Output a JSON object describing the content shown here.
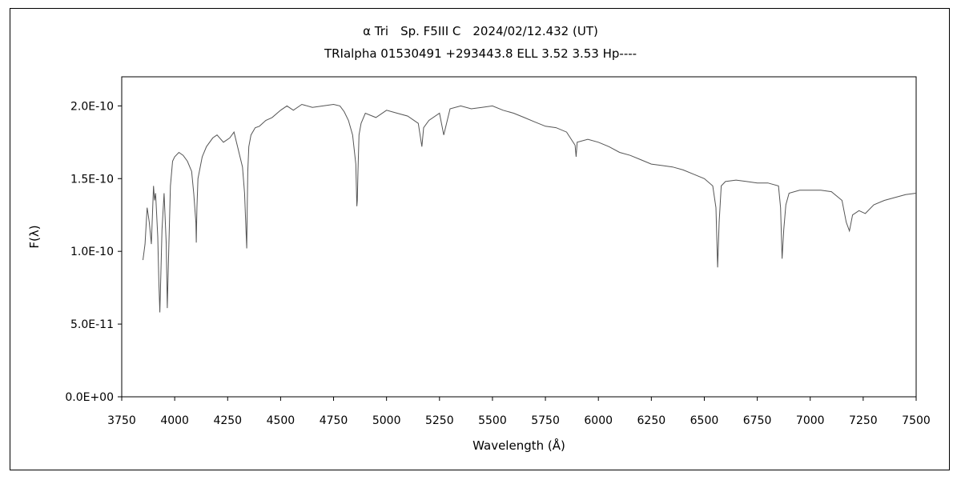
{
  "chart_data": {
    "type": "line",
    "title": "α Tri　Sp. F5III C　2024/02/12.432 (UT)",
    "subtitle": "TRIalpha 01530491 +293443.8 ELL 3.52 3.53 Hp----",
    "xlabel": "Wavelength (Å)",
    "ylabel": "F(λ)",
    "xlim": [
      3750,
      7500
    ],
    "ylim": [
      0,
      2.2e-10
    ],
    "grid": false,
    "x_ticks": [
      3750,
      4000,
      4250,
      4500,
      4750,
      5000,
      5250,
      5500,
      5750,
      6000,
      6250,
      6500,
      6750,
      7000,
      7250,
      7500
    ],
    "x_tick_labels": [
      "3750",
      "4000",
      "4250",
      "4500",
      "4750",
      "5000",
      "5250",
      "5500",
      "5750",
      "6000",
      "6250",
      "6500",
      "6750",
      "7000",
      "7250",
      "7500"
    ],
    "y_ticks": [
      0,
      5e-11,
      1e-10,
      1.5e-10,
      2e-10
    ],
    "y_tick_labels": [
      "0.0E+00",
      "5.0E-11",
      "1.0E-10",
      "1.5E-10",
      "2.0E-10"
    ],
    "series": [
      {
        "color": "#555555",
        "x": [
          3850,
          3860,
          3870,
          3875,
          3880,
          3890,
          3900,
          3905,
          3910,
          3920,
          3925,
          3930,
          3935,
          3940,
          3950,
          3960,
          3965,
          3970,
          3980,
          3990,
          4000,
          4020,
          4040,
          4060,
          4080,
          4090,
          4100,
          4102,
          4105,
          4110,
          4130,
          4150,
          4180,
          4200,
          4230,
          4260,
          4280,
          4300,
          4320,
          4330,
          4335,
          4340,
          4342,
          4345,
          4350,
          4360,
          4380,
          4400,
          4430,
          4460,
          4500,
          4530,
          4560,
          4600,
          4650,
          4700,
          4750,
          4780,
          4800,
          4820,
          4840,
          4855,
          4860,
          4862,
          4865,
          4870,
          4880,
          4900,
          4950,
          5000,
          5050,
          5100,
          5150,
          5167,
          5175,
          5200,
          5250,
          5270,
          5300,
          5350,
          5400,
          5450,
          5500,
          5550,
          5600,
          5650,
          5700,
          5750,
          5800,
          5850,
          5890,
          5895,
          5900,
          5950,
          6000,
          6050,
          6100,
          6150,
          6200,
          6250,
          6300,
          6350,
          6400,
          6450,
          6500,
          6540,
          6555,
          6563,
          6570,
          6580,
          6600,
          6650,
          6700,
          6750,
          6800,
          6850,
          6860,
          6867,
          6875,
          6885,
          6900,
          6950,
          7000,
          7050,
          7100,
          7150,
          7170,
          7185,
          7200,
          7230,
          7260,
          7300,
          7350,
          7400,
          7450,
          7500
        ],
        "y": [
          9.4e-11,
          1.05e-10,
          1.3e-10,
          1.25e-10,
          1.2e-10,
          1.05e-10,
          1.45e-10,
          1.35e-10,
          1.4e-10,
          1.1e-10,
          8e-11,
          5.8e-11,
          8.5e-11,
          1.15e-10,
          1.4e-10,
          1.05e-10,
          6.1e-11,
          9e-11,
          1.45e-10,
          1.62e-10,
          1.65e-10,
          1.68e-10,
          1.66e-10,
          1.62e-10,
          1.55e-10,
          1.4e-10,
          1.2e-10,
          1.06e-10,
          1.3e-10,
          1.5e-10,
          1.65e-10,
          1.72e-10,
          1.78e-10,
          1.8e-10,
          1.75e-10,
          1.78e-10,
          1.82e-10,
          1.7e-10,
          1.58e-10,
          1.4e-10,
          1.2e-10,
          1.02e-10,
          1.25e-10,
          1.55e-10,
          1.72e-10,
          1.8e-10,
          1.85e-10,
          1.86e-10,
          1.9e-10,
          1.92e-10,
          1.97e-10,
          2e-10,
          1.97e-10,
          2.01e-10,
          1.99e-10,
          2e-10,
          2.01e-10,
          2e-10,
          1.96e-10,
          1.9e-10,
          1.8e-10,
          1.6e-10,
          1.31e-10,
          1.35e-10,
          1.55e-10,
          1.8e-10,
          1.88e-10,
          1.95e-10,
          1.92e-10,
          1.97e-10,
          1.95e-10,
          1.93e-10,
          1.88e-10,
          1.72e-10,
          1.85e-10,
          1.9e-10,
          1.95e-10,
          1.8e-10,
          1.98e-10,
          2e-10,
          1.98e-10,
          1.99e-10,
          2e-10,
          1.97e-10,
          1.95e-10,
          1.92e-10,
          1.89e-10,
          1.86e-10,
          1.85e-10,
          1.82e-10,
          1.73e-10,
          1.65e-10,
          1.75e-10,
          1.77e-10,
          1.75e-10,
          1.72e-10,
          1.68e-10,
          1.66e-10,
          1.63e-10,
          1.6e-10,
          1.59e-10,
          1.58e-10,
          1.56e-10,
          1.53e-10,
          1.5e-10,
          1.45e-10,
          1.3e-10,
          8.9e-11,
          1.2e-10,
          1.45e-10,
          1.48e-10,
          1.49e-10,
          1.48e-10,
          1.47e-10,
          1.47e-10,
          1.45e-10,
          1.3e-10,
          9.5e-11,
          1.15e-10,
          1.32e-10,
          1.4e-10,
          1.42e-10,
          1.42e-10,
          1.42e-10,
          1.41e-10,
          1.35e-10,
          1.2e-10,
          1.14e-10,
          1.25e-10,
          1.28e-10,
          1.26e-10,
          1.32e-10,
          1.35e-10,
          1.37e-10,
          1.39e-10,
          1.4e-10
        ]
      }
    ]
  }
}
